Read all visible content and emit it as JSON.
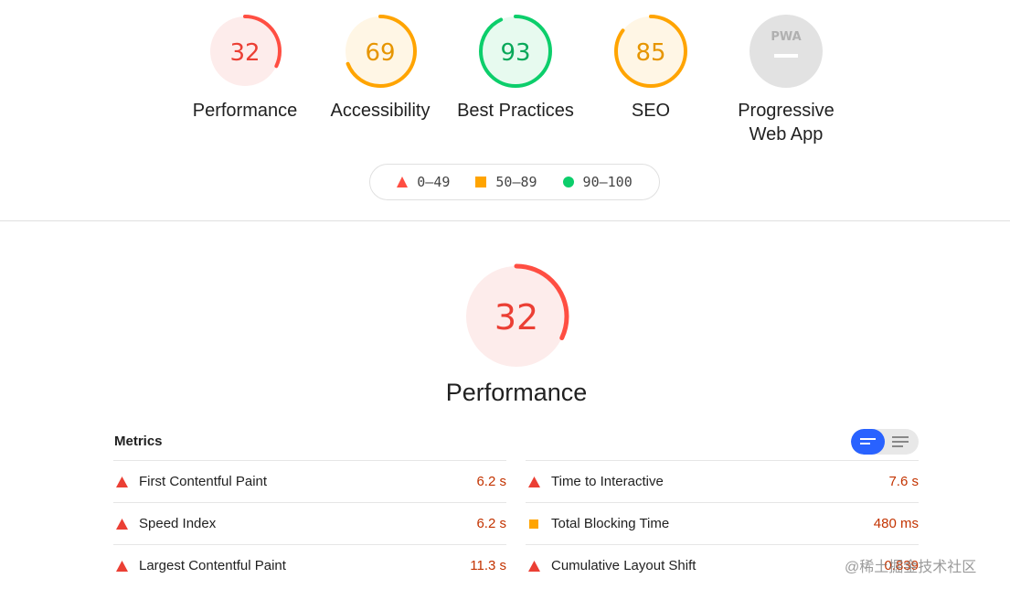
{
  "summary": [
    {
      "score": "32",
      "value": 32,
      "label": "Performance",
      "color": "#ff4e42",
      "bg": "#fdeceb"
    },
    {
      "score": "69",
      "value": 69,
      "label": "Accessibility",
      "color": "#ffa400",
      "bg": "#fff6e5"
    },
    {
      "score": "93",
      "value": 93,
      "label": "Best Practices",
      "color": "#0cce6b",
      "bg": "#e7faef"
    },
    {
      "score": "85",
      "value": 85,
      "label": "SEO",
      "color": "#ffa400",
      "bg": "#fff6e5"
    },
    {
      "score": "PWA",
      "label": "Progressive Web App",
      "color": "#b0b0b0",
      "bg": "#e2e2e2"
    }
  ],
  "legend": [
    {
      "range": "0–49",
      "shape": "triangle",
      "color": "#ff4e42"
    },
    {
      "range": "50–89",
      "shape": "square",
      "color": "#ffa400"
    },
    {
      "range": "90–100",
      "shape": "circle",
      "color": "#0cce6b"
    }
  ],
  "performance": {
    "score": "32",
    "value": 32,
    "title": "Performance",
    "color": "#ff4e42"
  },
  "metrics": {
    "title": "Metrics",
    "left": [
      {
        "name": "First Contentful Paint",
        "value": "6.2 s",
        "rating": "fail"
      },
      {
        "name": "Speed Index",
        "value": "6.2 s",
        "rating": "fail"
      },
      {
        "name": "Largest Contentful Paint",
        "value": "11.3 s",
        "rating": "fail"
      }
    ],
    "right": [
      {
        "name": "Time to Interactive",
        "value": "7.6 s",
        "rating": "fail"
      },
      {
        "name": "Total Blocking Time",
        "value": "480 ms",
        "rating": "average"
      },
      {
        "name": "Cumulative Layout Shift",
        "value": "0.839",
        "rating": "fail"
      }
    ]
  },
  "watermark": "@稀土掘金技术社区"
}
